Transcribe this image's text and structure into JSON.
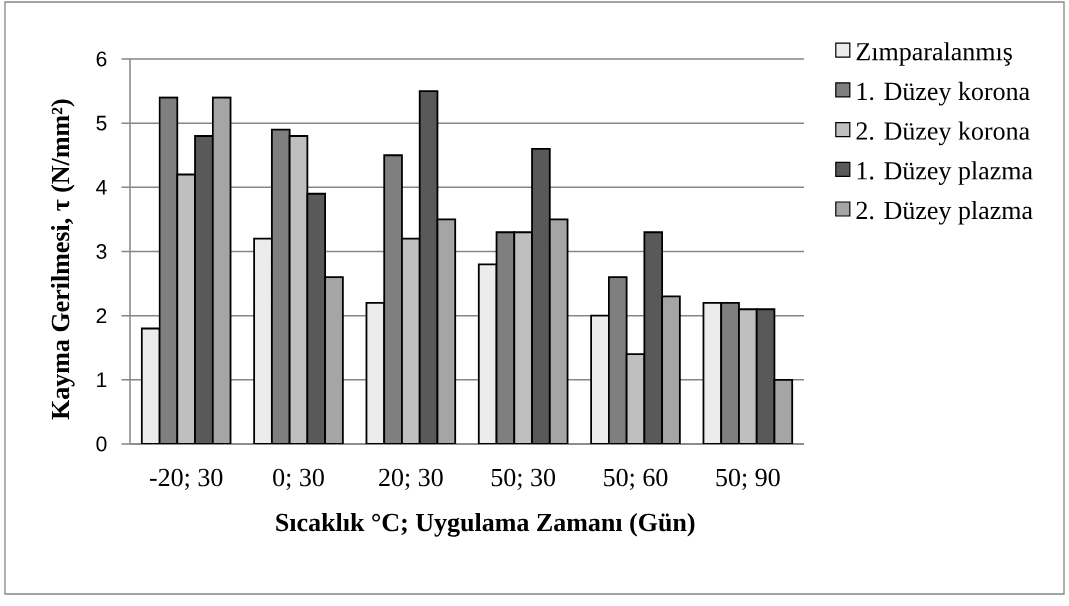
{
  "chart_data": {
    "type": "bar",
    "xlabel": "Sıcaklık °C; Uygulama Zamanı (Gün)",
    "ylabel": "Kayma Gerilmesi, τ (N/mm²)",
    "categories": [
      "-20; 30",
      "0; 30",
      "20; 30",
      "50; 30",
      "50; 60",
      "50; 90"
    ],
    "series": [
      {
        "name": "Zımparalanmış",
        "color": "#ececec",
        "values": [
          1.8,
          3.2,
          2.2,
          2.8,
          2.0,
          2.2
        ]
      },
      {
        "name": "1. Düzey korona",
        "color": "#7f7f7f",
        "values": [
          5.4,
          4.9,
          4.5,
          3.3,
          2.6,
          2.2
        ]
      },
      {
        "name": "2. Düzey korona",
        "color": "#bfbfbf",
        "values": [
          4.2,
          4.8,
          3.2,
          3.3,
          1.4,
          2.1
        ]
      },
      {
        "name": "1. Düzey plazma",
        "color": "#595959",
        "values": [
          4.8,
          3.9,
          5.5,
          4.6,
          3.3,
          2.1
        ]
      },
      {
        "name": "2. Düzey plazma",
        "color": "#a5a5a5",
        "values": [
          5.4,
          2.6,
          3.5,
          3.5,
          2.3,
          1.0
        ]
      }
    ],
    "ylim": [
      0,
      6
    ],
    "yticks": [
      0,
      1,
      2,
      3,
      4,
      5,
      6
    ],
    "grid": "y",
    "legend": "right"
  }
}
